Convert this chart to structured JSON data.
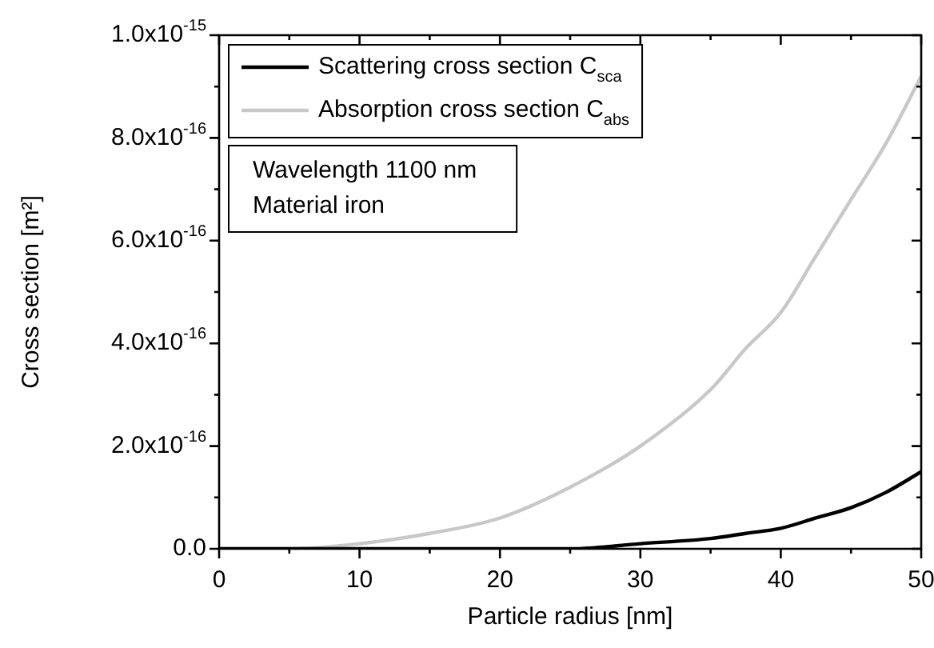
{
  "chart_data": {
    "type": "line",
    "xlabel": "Particle radius [nm]",
    "ylabel": "Cross section [m²]",
    "x": [
      0,
      5,
      10,
      15,
      20,
      25,
      30,
      35,
      37.5,
      40,
      42.5,
      45,
      47.5,
      50
    ],
    "series": [
      {
        "name": "Scattering cross section C$_{sca}$",
        "color": "#000000",
        "values": [
          0,
          0,
          0,
          0,
          0,
          0,
          1e-17,
          2e-17,
          3e-17,
          4e-17,
          6e-17,
          8e-17,
          1.1e-16,
          1.5e-16
        ]
      },
      {
        "name": "Absorption cross section C$_{abs}$",
        "color": "#c8c8c8",
        "values": [
          0,
          0,
          1e-17,
          3e-17,
          6e-17,
          1.2e-16,
          2e-16,
          3.1e-16,
          3.9e-16,
          4.6e-16,
          5.7e-16,
          6.8e-16,
          7.9e-16,
          9.2e-16
        ]
      }
    ],
    "xlim": [
      0,
      50
    ],
    "ylim": [
      0,
      1e-15
    ],
    "xticks": [
      0,
      {
        "value": 5,
        "label": null
      },
      10,
      {
        "value": 15,
        "label": null
      },
      20,
      {
        "value": 25,
        "label": null
      },
      30,
      {
        "value": 35,
        "label": null
      },
      40,
      {
        "value": 45,
        "label": null
      },
      50
    ],
    "yticks": [
      {
        "value": 0,
        "label": "0.0"
      },
      {
        "value": 1e-16,
        "label": null
      },
      {
        "value": 2e-16,
        "label": "2.0x10$^{-16}$"
      },
      {
        "value": 3e-16,
        "label": null
      },
      {
        "value": 4e-16,
        "label": "4.0x10$^{-16}$"
      },
      {
        "value": 5e-16,
        "label": null
      },
      {
        "value": 6e-16,
        "label": "6.0x10$^{-16}$"
      },
      {
        "value": 7e-16,
        "label": null
      },
      {
        "value": 8e-16,
        "label": "8.0x10$^{-16}$"
      },
      {
        "value": 9e-16,
        "label": null
      },
      {
        "value": 1e-15,
        "label": "1.0x10$^{-15}$"
      }
    ],
    "annotations": [
      "Wavelength 1100 nm",
      "Material iron"
    ],
    "legend": "top left",
    "grid": false,
    "marker": "none",
    "line_style": "solid"
  }
}
